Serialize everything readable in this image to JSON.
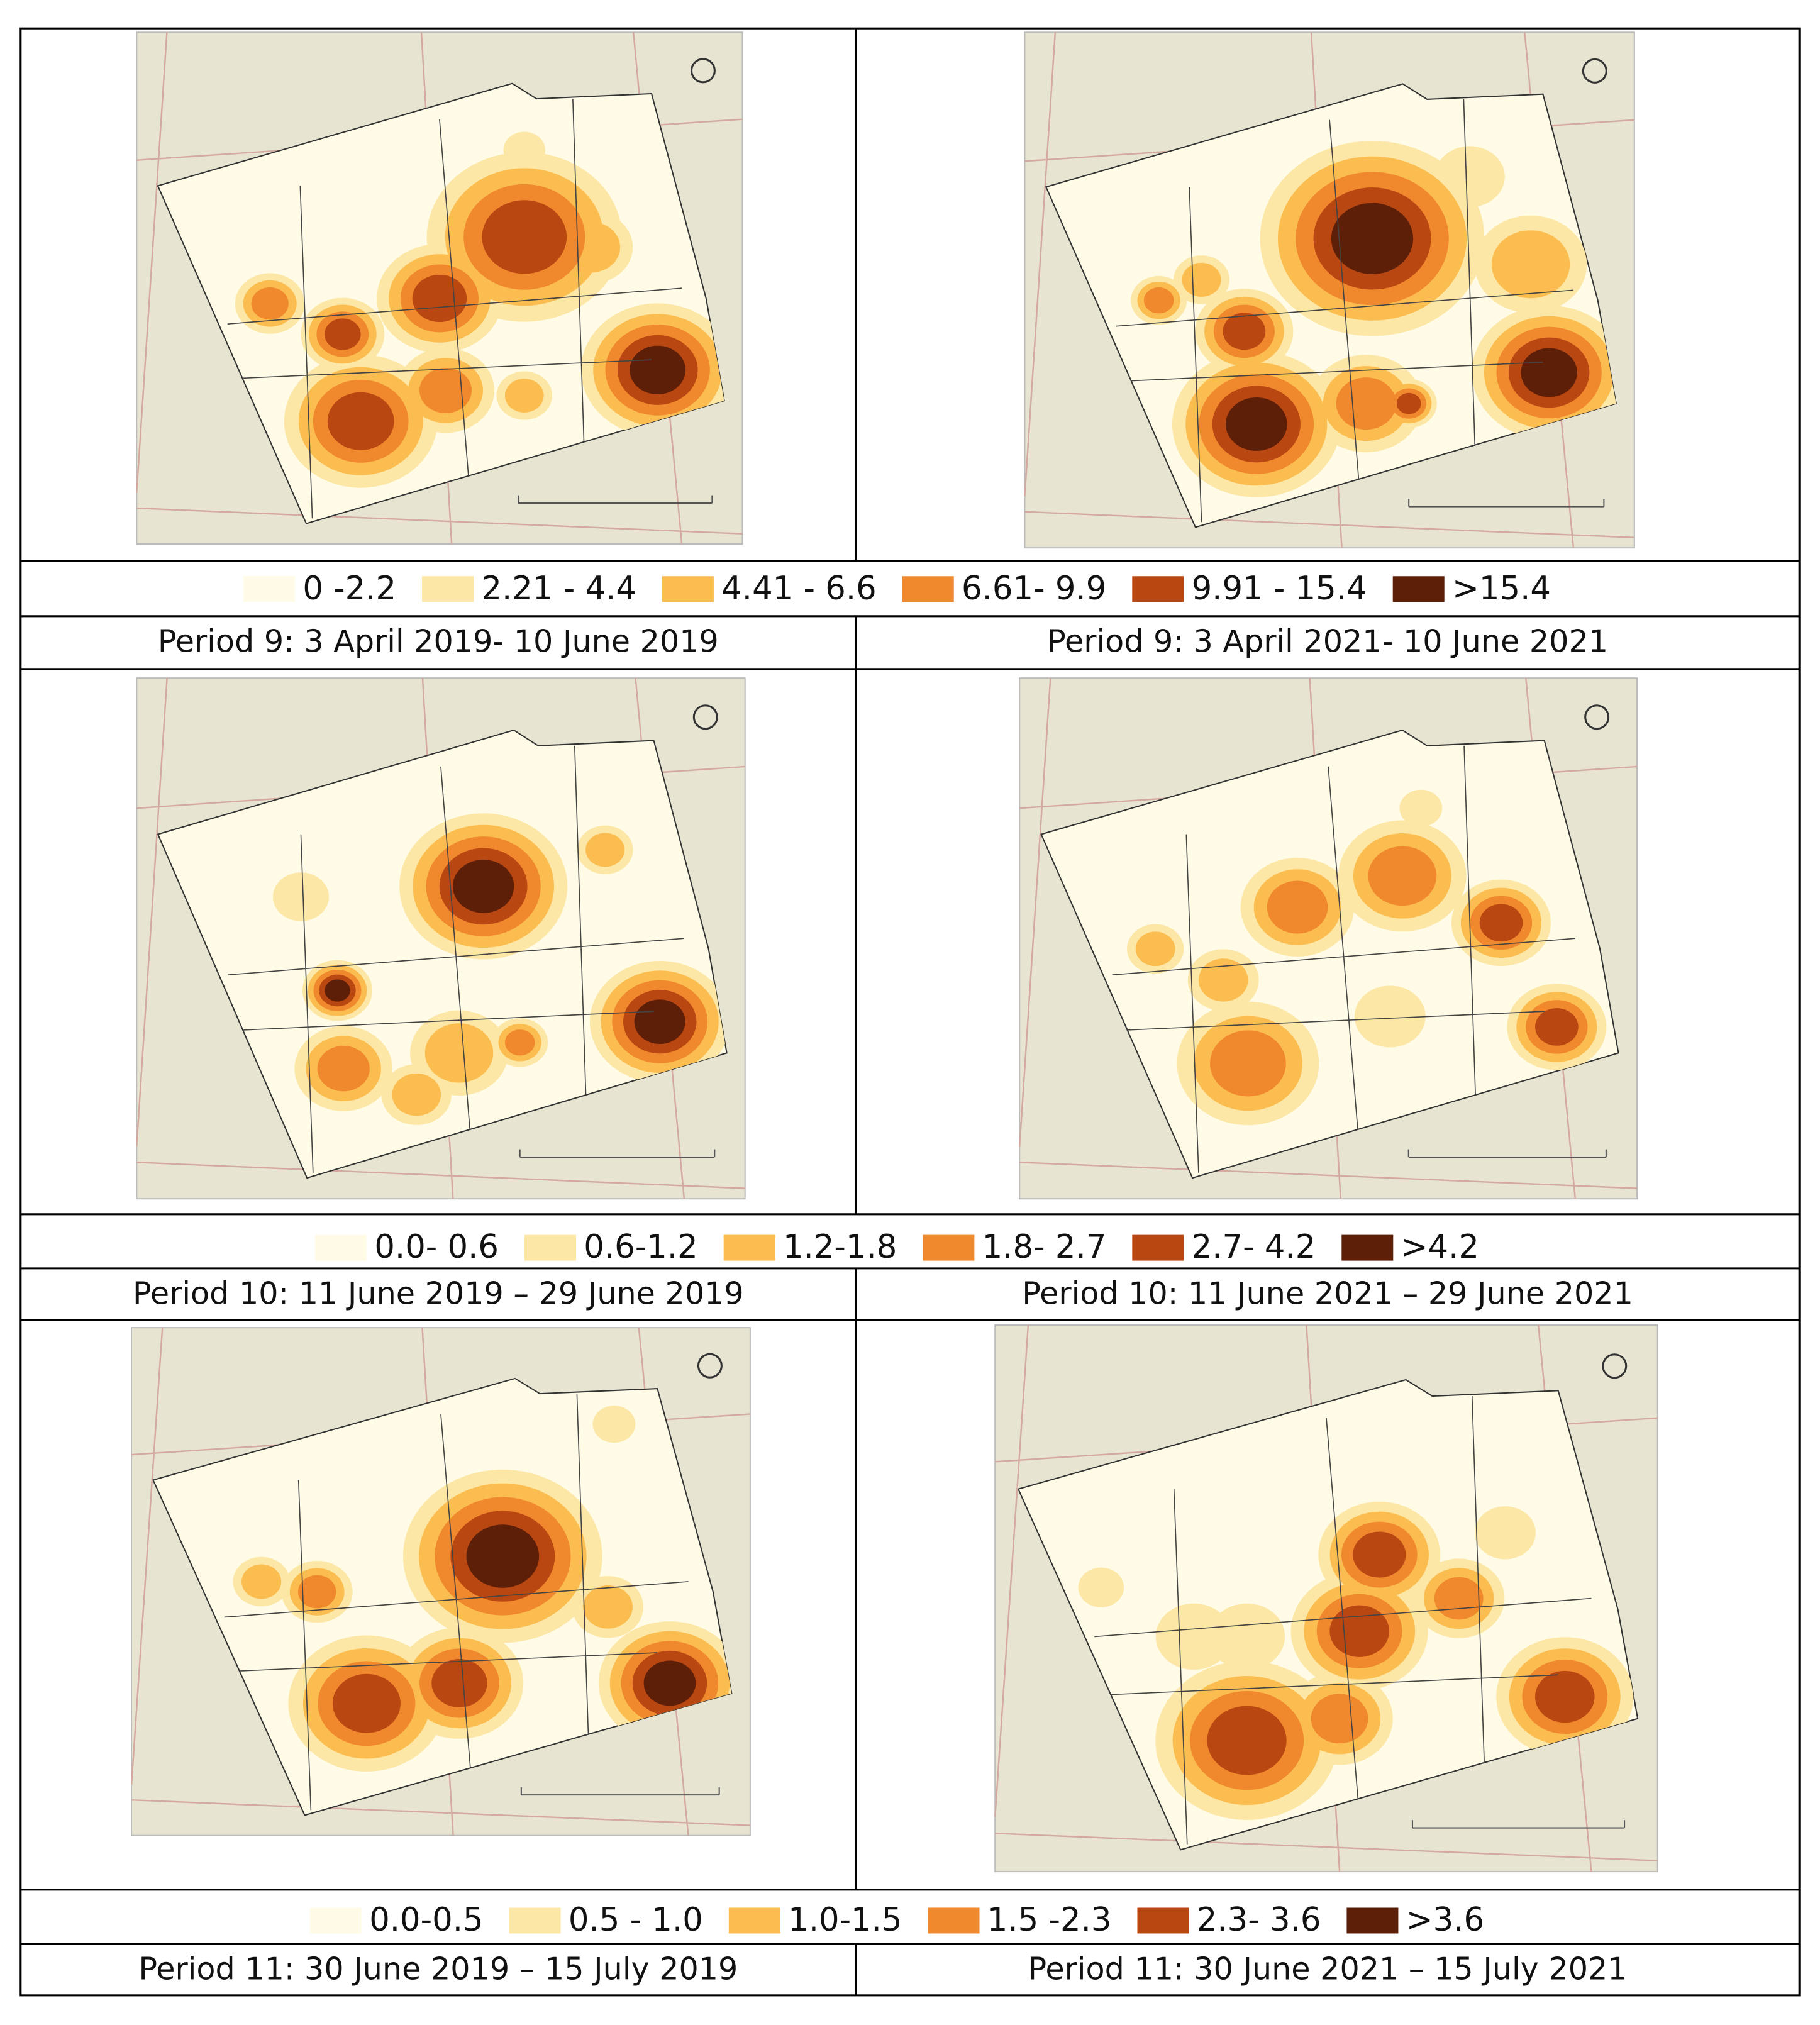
{
  "colors": [
    "#fffbe6",
    "#fde7a6",
    "#fbbd4f",
    "#f0882e",
    "#b84712",
    "#5e1f08"
  ],
  "rows": [
    {
      "legend": [
        "0 -2.2",
        "2.21 - 4.4",
        "4.41 - 6.6",
        "6.61- 9.9",
        "9.91 - 15.4",
        ">15.4"
      ],
      "captions": [
        "Period 9: 3 April 2019- 10 June 2019",
        "Period 9: 3 April 2021- 10 June 2021"
      ]
    },
    {
      "legend": [
        "0.0- 0.6",
        "0.6-1.2",
        "1.2-1.8",
        "1.8- 2.7",
        "2.7- 4.2",
        ">4.2"
      ],
      "captions": [
        "Period 10: 11 June 2019 – 29 June 2019",
        "Period 10: 11 June 2021 – 29 June 2021"
      ]
    },
    {
      "legend": [
        "0.0-0.5",
        "0.5 - 1.0",
        "1.0-1.5",
        "1.5 -2.3",
        "2.3- 3.6",
        ">3.6"
      ],
      "captions": [
        "Period 11: 30 June 2019 – 15 July 2019",
        "Period 11: 30 June 2021 – 15 July 2021"
      ]
    }
  ]
}
